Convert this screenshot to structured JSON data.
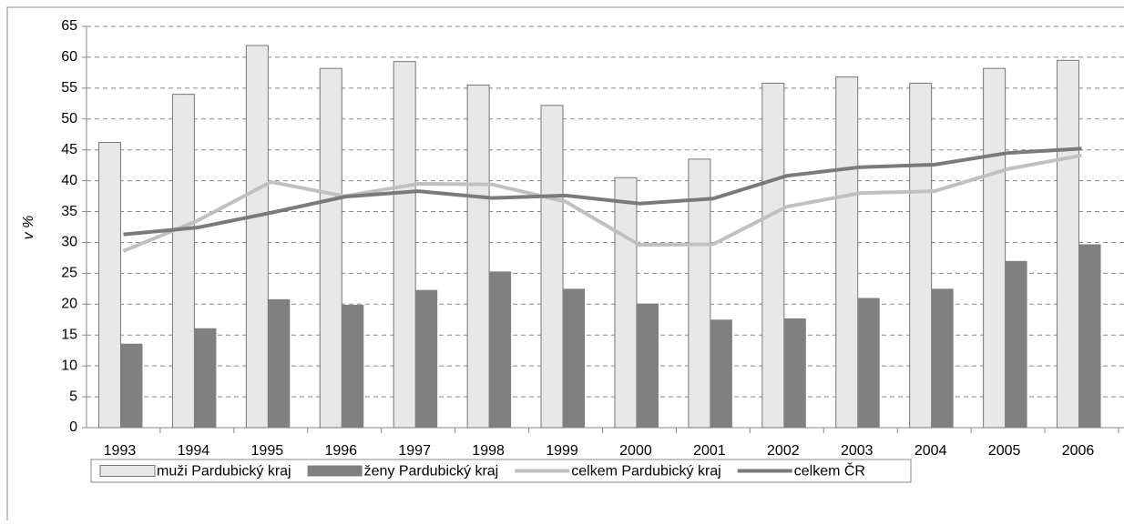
{
  "chart_data": {
    "type": "bar",
    "y_label": "v %",
    "categories": [
      "1993",
      "1994",
      "1995",
      "1996",
      "1997",
      "1998",
      "1999",
      "2000",
      "2001",
      "2002",
      "2003",
      "2004",
      "2005",
      "2006"
    ],
    "series": [
      {
        "name": "muži Pardubický kraj",
        "type": "bar",
        "color": "#e8e8e8",
        "values": [
          46.2,
          54,
          61.9,
          58.2,
          59.3,
          55.5,
          52.2,
          40.5,
          43.5,
          55.8,
          56.8,
          55.8,
          58.2,
          59.5
        ]
      },
      {
        "name": "ženy Pardubický kraj",
        "type": "bar",
        "color": "#808080",
        "values": [
          13.6,
          16.1,
          20.8,
          19.9,
          22.3,
          25.3,
          22.5,
          20.1,
          17.5,
          17.7,
          21.0,
          22.5,
          27.0,
          29.7
        ]
      },
      {
        "name": "celkem Pardubický kraj",
        "type": "line",
        "color": "#c0c0c0",
        "values": [
          28.6,
          33.5,
          39.8,
          37.5,
          39.5,
          39.4,
          36.6,
          29.6,
          29.7,
          35.8,
          38.0,
          38.3,
          41.9,
          44.1
        ]
      },
      {
        "name": "celkem ČR",
        "type": "line",
        "color": "#7a7a7a",
        "values": [
          31.3,
          32.4,
          34.8,
          37.4,
          38.3,
          37.2,
          37.6,
          36.3,
          37.1,
          40.8,
          42.2,
          42.6,
          44.5,
          45.2
        ]
      }
    ],
    "ylim": [
      0,
      65
    ],
    "yticks": [
      0,
      5,
      10,
      15,
      20,
      25,
      30,
      35,
      40,
      45,
      50,
      55,
      60,
      65
    ],
    "grid": true,
    "legend": "bottom"
  }
}
